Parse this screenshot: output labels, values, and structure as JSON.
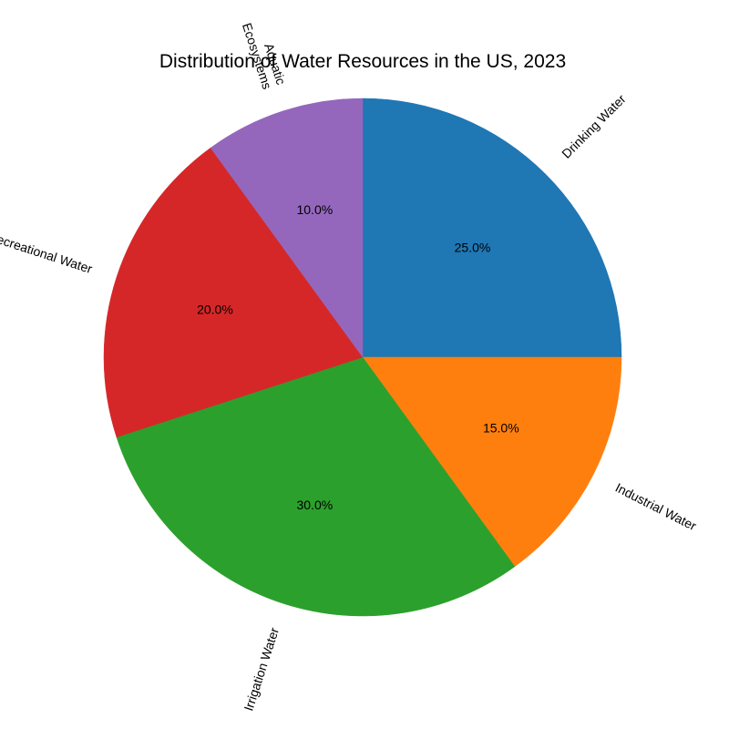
{
  "chart_data": {
    "type": "pie",
    "title": "Distribution of Water Resources in the US, 2023",
    "start_angle_deg": 90,
    "direction": "clockwise",
    "slices": [
      {
        "label": "Drinking Water",
        "value": 25.0,
        "pct_label": "25.0%",
        "color": "#1f77b4"
      },
      {
        "label": "Industrial Water",
        "value": 15.0,
        "pct_label": "15.0%",
        "color": "#ff7f0e"
      },
      {
        "label": "Irrigation Water",
        "value": 30.0,
        "pct_label": "30.0%",
        "color": "#2ca02c"
      },
      {
        "label": "Recreational Water",
        "value": 20.0,
        "pct_label": "20.0%",
        "color": "#d62728"
      },
      {
        "label": [
          "Aquatic",
          "Ecosystems"
        ],
        "value": 10.0,
        "pct_label": "10.0%",
        "color": "#9467bd"
      }
    ]
  }
}
